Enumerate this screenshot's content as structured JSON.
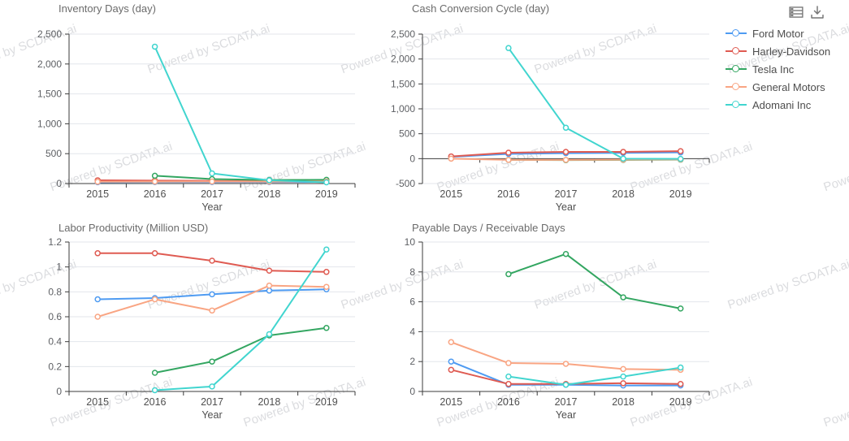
{
  "toolbar": {
    "data_view_tooltip": "data view",
    "download_tooltip": "download"
  },
  "watermark": {
    "text": "Powered by SCDATA.ai"
  },
  "legend": {
    "position": "right-top",
    "items": [
      {
        "label": "Ford Motor",
        "color": "#4E9BF2"
      },
      {
        "label": "Harley-Davidson",
        "color": "#DF5B52"
      },
      {
        "label": "Tesla Inc",
        "color": "#33A661"
      },
      {
        "label": "General Motors",
        "color": "#F9A583"
      },
      {
        "label": "Adomani Inc",
        "color": "#41D5CF"
      }
    ]
  },
  "chart_data": [
    {
      "type": "line",
      "title": "Inventory Days (day)",
      "xlabel": "Year",
      "categories": [
        "2015",
        "2016",
        "2017",
        "2018",
        "2019"
      ],
      "ylim": [
        0,
        2500
      ],
      "yticks": [
        0,
        500,
        1000,
        1500,
        2000,
        2500
      ],
      "ytick_labels": [
        "0",
        "500",
        "1,000",
        "1,500",
        "2,000",
        "2,500"
      ],
      "grid": true,
      "series": [
        {
          "name": "Ford Motor",
          "values": [
            22,
            25,
            25,
            25,
            28
          ]
        },
        {
          "name": "Harley-Davidson",
          "values": [
            55,
            50,
            45,
            42,
            45
          ]
        },
        {
          "name": "Tesla Inc",
          "values": [
            null,
            130,
            75,
            60,
            62
          ]
        },
        {
          "name": "General Motors",
          "values": [
            30,
            32,
            34,
            33,
            36
          ]
        },
        {
          "name": "Adomani Inc",
          "values": [
            null,
            2290,
            170,
            55,
            20
          ]
        }
      ]
    },
    {
      "type": "line",
      "title": "Cash Conversion Cycle (day)",
      "xlabel": "Year",
      "categories": [
        "2015",
        "2016",
        "2017",
        "2018",
        "2019"
      ],
      "ylim": [
        -500,
        2500
      ],
      "yticks": [
        -500,
        0,
        500,
        1000,
        1500,
        2000,
        2500
      ],
      "ytick_labels": [
        "-500",
        "0",
        "500",
        "1,000",
        "1,500",
        "2,000",
        "2,500"
      ],
      "grid": true,
      "series": [
        {
          "name": "Ford Motor",
          "values": [
            35,
            95,
            110,
            115,
            125
          ]
        },
        {
          "name": "Harley-Davidson",
          "values": [
            45,
            120,
            135,
            135,
            150
          ]
        },
        {
          "name": "Tesla Inc",
          "values": [
            null,
            -25,
            -30,
            -25,
            -20
          ]
        },
        {
          "name": "General Motors",
          "values": [
            0,
            -25,
            -25,
            -20,
            -15
          ]
        },
        {
          "name": "Adomani Inc",
          "values": [
            null,
            2220,
            620,
            0,
            -5
          ]
        }
      ]
    },
    {
      "type": "line",
      "title": "Labor Productivity (Million USD)",
      "xlabel": "Year",
      "categories": [
        "2015",
        "2016",
        "2017",
        "2018",
        "2019"
      ],
      "ylim": [
        0,
        1.2
      ],
      "yticks": [
        0,
        0.2,
        0.4,
        0.6,
        0.8,
        1,
        1.2
      ],
      "ytick_labels": [
        "0",
        "0.2",
        "0.4",
        "0.6",
        "0.8",
        "1",
        "1.2"
      ],
      "grid": true,
      "series": [
        {
          "name": "Ford Motor",
          "values": [
            0.74,
            0.75,
            0.78,
            0.81,
            0.82
          ]
        },
        {
          "name": "Harley-Davidson",
          "values": [
            1.11,
            1.11,
            1.05,
            0.97,
            0.96
          ]
        },
        {
          "name": "Tesla Inc",
          "values": [
            null,
            0.15,
            0.24,
            0.45,
            0.51
          ]
        },
        {
          "name": "General Motors",
          "values": [
            0.6,
            0.74,
            0.65,
            0.85,
            0.84
          ]
        },
        {
          "name": "Adomani Inc",
          "values": [
            null,
            0.01,
            0.04,
            0.46,
            1.14
          ]
        }
      ]
    },
    {
      "type": "line",
      "title": "Payable Days / Receivable Days",
      "xlabel": "Year",
      "categories": [
        "2015",
        "2016",
        "2017",
        "2018",
        "2019"
      ],
      "ylim": [
        0,
        10
      ],
      "yticks": [
        0,
        2,
        4,
        6,
        8,
        10
      ],
      "ytick_labels": [
        "0",
        "2",
        "4",
        "6",
        "8",
        "10"
      ],
      "grid": true,
      "series": [
        {
          "name": "Ford Motor",
          "values": [
            2.0,
            0.45,
            0.45,
            0.4,
            0.4
          ]
        },
        {
          "name": "Harley-Davidson",
          "values": [
            1.45,
            0.5,
            0.5,
            0.55,
            0.5
          ]
        },
        {
          "name": "Tesla Inc",
          "values": [
            null,
            7.85,
            9.2,
            6.3,
            5.55
          ]
        },
        {
          "name": "General Motors",
          "values": [
            3.3,
            1.9,
            1.85,
            1.5,
            1.45
          ]
        },
        {
          "name": "Adomani Inc",
          "values": [
            null,
            1.0,
            0.45,
            1.0,
            1.6
          ]
        }
      ]
    }
  ]
}
